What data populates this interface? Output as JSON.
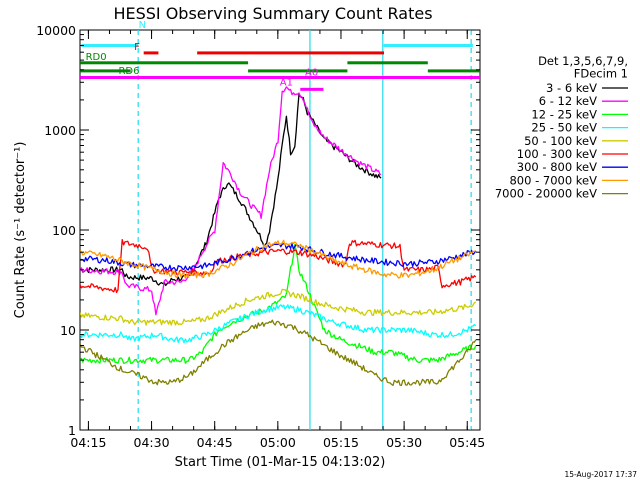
{
  "chart_data": {
    "type": "line",
    "title": "HESSI Observing Summary Count Rates",
    "xlabel": "Start Time (01-Mar-15 04:13:02)",
    "ylabel": "Count Rate (s⁻¹ detector⁻¹)",
    "xlim_minutes_after_04_13_02": [
      -0.03,
      95.0
    ],
    "x_unit": "minutes after 01-Mar-15 04:13:02",
    "ylim": [
      1,
      10000
    ],
    "y_scale": "log",
    "x_ticks": [
      {
        "m": 1.97,
        "label": "04:15"
      },
      {
        "m": 16.97,
        "label": "04:30"
      },
      {
        "m": 31.97,
        "label": "04:45"
      },
      {
        "m": 46.97,
        "label": "05:00"
      },
      {
        "m": 61.97,
        "label": "05:15"
      },
      {
        "m": 76.97,
        "label": "05:30"
      },
      {
        "m": 91.97,
        "label": "05:45"
      }
    ],
    "y_ticks": [
      {
        "v": 1,
        "label": "1"
      },
      {
        "v": 10,
        "label": "10"
      },
      {
        "v": 100,
        "label": "100"
      },
      {
        "v": 1000,
        "label": "1000"
      },
      {
        "v": 10000,
        "label": "10000"
      }
    ],
    "legend": {
      "header": [
        "Det 1,3,5,6,7,9,",
        "FDecim 1"
      ],
      "placement": "right"
    },
    "series": [
      {
        "name": "3 - 6 keV",
        "color": "#000000",
        "points": [
          [
            0,
            40
          ],
          [
            10,
            40
          ],
          [
            11,
            34
          ],
          [
            17,
            33
          ],
          [
            20,
            28
          ],
          [
            22,
            32
          ],
          [
            26,
            34
          ],
          [
            30,
            75
          ],
          [
            33,
            210
          ],
          [
            35,
            300
          ],
          [
            38,
            200
          ],
          [
            41,
            120
          ],
          [
            44,
            70
          ],
          [
            45,
            100
          ],
          [
            47,
            320
          ],
          [
            48,
            700
          ],
          [
            49,
            1400
          ],
          [
            50,
            600
          ],
          [
            51,
            700
          ],
          [
            52,
            2300
          ],
          [
            53,
            2000
          ],
          [
            54,
            1500
          ],
          [
            56,
            1100
          ],
          [
            58,
            800
          ],
          [
            62,
            600
          ],
          [
            66,
            440
          ],
          [
            70,
            350
          ],
          [
            71.5,
            330
          ]
        ]
      },
      {
        "name": "6 - 12 keV",
        "color": "#ff00ff",
        "points": [
          [
            0,
            40
          ],
          [
            10,
            38
          ],
          [
            11,
            28
          ],
          [
            17,
            25
          ],
          [
            18,
            14
          ],
          [
            20,
            30
          ],
          [
            24,
            30
          ],
          [
            27,
            40
          ],
          [
            29,
            60
          ],
          [
            32,
            100
          ],
          [
            34,
            470
          ],
          [
            36,
            350
          ],
          [
            38,
            240
          ],
          [
            41,
            170
          ],
          [
            43,
            140
          ],
          [
            45,
            400
          ],
          [
            47,
            800
          ],
          [
            48,
            2500
          ],
          [
            49,
            2700
          ],
          [
            50,
            2400
          ],
          [
            52,
            2400
          ],
          [
            53,
            2100
          ],
          [
            55,
            1200
          ],
          [
            58,
            850
          ],
          [
            62,
            630
          ],
          [
            66,
            480
          ],
          [
            70,
            390
          ],
          [
            71.5,
            360
          ]
        ]
      },
      {
        "name": "12 - 25 keV",
        "color": "#00ff00",
        "points": [
          [
            0,
            5
          ],
          [
            10,
            5
          ],
          [
            12,
            5
          ],
          [
            20,
            5
          ],
          [
            26,
            5
          ],
          [
            29,
            6
          ],
          [
            31,
            8
          ],
          [
            33,
            10
          ],
          [
            36,
            12
          ],
          [
            40,
            14
          ],
          [
            44,
            16
          ],
          [
            47,
            19
          ],
          [
            49,
            22
          ],
          [
            50,
            40
          ],
          [
            51,
            70
          ],
          [
            52,
            40
          ],
          [
            54,
            26
          ],
          [
            56,
            16
          ],
          [
            58,
            10
          ],
          [
            62,
            8
          ],
          [
            66,
            7
          ],
          [
            70,
            6
          ],
          [
            74,
            6
          ],
          [
            80,
            5
          ],
          [
            85,
            5
          ],
          [
            90,
            6
          ],
          [
            94,
            7
          ]
        ]
      },
      {
        "name": "25 - 50 keV",
        "color": "#00ffff",
        "points": [
          [
            0,
            9
          ],
          [
            10,
            9
          ],
          [
            12,
            8
          ],
          [
            18,
            9
          ],
          [
            22,
            8
          ],
          [
            26,
            8
          ],
          [
            30,
            9
          ],
          [
            36,
            12
          ],
          [
            40,
            14
          ],
          [
            44,
            16
          ],
          [
            48,
            17
          ],
          [
            52,
            16
          ],
          [
            56,
            14
          ],
          [
            60,
            12
          ],
          [
            64,
            11
          ],
          [
            68,
            10
          ],
          [
            72,
            10
          ],
          [
            78,
            10
          ],
          [
            84,
            9
          ],
          [
            88,
            9
          ],
          [
            92,
            10
          ],
          [
            94,
            11
          ]
        ]
      },
      {
        "name": "50 - 100 keV",
        "color": "#cccc00",
        "points": [
          [
            0,
            14
          ],
          [
            10,
            13
          ],
          [
            12,
            12
          ],
          [
            18,
            12
          ],
          [
            22,
            12
          ],
          [
            26,
            12
          ],
          [
            30,
            13
          ],
          [
            36,
            17
          ],
          [
            40,
            20
          ],
          [
            44,
            22
          ],
          [
            48,
            24
          ],
          [
            52,
            22
          ],
          [
            56,
            19
          ],
          [
            60,
            17
          ],
          [
            64,
            16
          ],
          [
            68,
            15
          ],
          [
            72,
            15
          ],
          [
            78,
            15
          ],
          [
            84,
            15
          ],
          [
            88,
            16
          ],
          [
            92,
            17
          ],
          [
            94,
            19
          ]
        ]
      },
      {
        "name": "100 - 300 keV",
        "color": "#ff0000",
        "points": [
          [
            0,
            28
          ],
          [
            6,
            26
          ],
          [
            9,
            25
          ],
          [
            10,
            75
          ],
          [
            14,
            70
          ],
          [
            16,
            67
          ],
          [
            17,
            40
          ],
          [
            22,
            38
          ],
          [
            26,
            38
          ],
          [
            31,
            37
          ],
          [
            32,
            48
          ],
          [
            38,
            55
          ],
          [
            44,
            60
          ],
          [
            48,
            62
          ],
          [
            52,
            60
          ],
          [
            56,
            55
          ],
          [
            60,
            48
          ],
          [
            63,
            45
          ],
          [
            64,
            75
          ],
          [
            70,
            72
          ],
          [
            74,
            70
          ],
          [
            76,
            68
          ],
          [
            77,
            40
          ],
          [
            82,
            40
          ],
          [
            85,
            42
          ],
          [
            86,
            28
          ],
          [
            90,
            30
          ],
          [
            94,
            34
          ]
        ]
      },
      {
        "name": "300 - 800 keV",
        "color": "#0000ff",
        "points": [
          [
            0,
            52
          ],
          [
            6,
            50
          ],
          [
            12,
            45
          ],
          [
            18,
            43
          ],
          [
            24,
            42
          ],
          [
            30,
            44
          ],
          [
            36,
            52
          ],
          [
            40,
            60
          ],
          [
            44,
            67
          ],
          [
            48,
            70
          ],
          [
            52,
            68
          ],
          [
            56,
            62
          ],
          [
            60,
            57
          ],
          [
            64,
            53
          ],
          [
            68,
            50
          ],
          [
            72,
            48
          ],
          [
            78,
            46
          ],
          [
            84,
            48
          ],
          [
            88,
            52
          ],
          [
            92,
            58
          ],
          [
            94,
            62
          ]
        ]
      },
      {
        "name": "800 - 7000 keV",
        "color": "#ff9900",
        "points": [
          [
            0,
            60
          ],
          [
            6,
            55
          ],
          [
            12,
            46
          ],
          [
            18,
            40
          ],
          [
            24,
            35
          ],
          [
            30,
            36
          ],
          [
            36,
            46
          ],
          [
            40,
            58
          ],
          [
            44,
            70
          ],
          [
            48,
            75
          ],
          [
            52,
            70
          ],
          [
            56,
            60
          ],
          [
            60,
            50
          ],
          [
            64,
            44
          ],
          [
            68,
            40
          ],
          [
            72,
            36
          ],
          [
            78,
            35
          ],
          [
            84,
            40
          ],
          [
            88,
            48
          ],
          [
            92,
            56
          ],
          [
            94,
            62
          ]
        ]
      },
      {
        "name": "7000 - 20000 keV",
        "color": "#808000",
        "points": [
          [
            0,
            7
          ],
          [
            6,
            5
          ],
          [
            10,
            4
          ],
          [
            14,
            3.5
          ],
          [
            18,
            3
          ],
          [
            22,
            3
          ],
          [
            26,
            3.5
          ],
          [
            30,
            5
          ],
          [
            34,
            7
          ],
          [
            38,
            9
          ],
          [
            42,
            11
          ],
          [
            46,
            12
          ],
          [
            50,
            11
          ],
          [
            54,
            9
          ],
          [
            58,
            7
          ],
          [
            62,
            5.5
          ],
          [
            66,
            4.5
          ],
          [
            70,
            3.5
          ],
          [
            74,
            3
          ],
          [
            78,
            3
          ],
          [
            82,
            3
          ],
          [
            85,
            3
          ],
          [
            88,
            4
          ],
          [
            92,
            6
          ],
          [
            94,
            8
          ]
        ]
      }
    ],
    "annotations": {
      "cursor_lines": [
        {
          "m": 13.8,
          "color": "#33ddee",
          "style": "dashed"
        },
        {
          "m": 54.6,
          "color": "#33ddee",
          "style": "solid"
        },
        {
          "m": 71.9,
          "color": "#33ddee",
          "style": "solid"
        },
        {
          "m": 92.9,
          "color": "#33ddee",
          "style": "dashed"
        }
      ],
      "flag_bars": [
        {
          "label": "N",
          "color": "#33eeff",
          "segments": [
            [
              0.3,
              13.8
            ],
            [
              72.1,
              93.3
            ]
          ],
          "level": 7000,
          "label_m": 14.8,
          "label_v": 10500
        },
        {
          "label": "F",
          "color": "#ee0000",
          "segments": [
            [
              15.1,
              18.6
            ],
            [
              27.8,
              72.2
            ]
          ],
          "level": 5900,
          "label_m": 13.5,
          "label_v": 6300
        },
        {
          "label": "RD0",
          "color": "#008800",
          "segments": [
            [
              0,
              39.9
            ],
            [
              63.5,
              82.6
            ]
          ],
          "level": 4700,
          "label_m": 3.8,
          "label_v": 5000
        },
        {
          "label": "RD6",
          "color": "#008800",
          "segments": [
            [
              0,
              12.0
            ],
            [
              39.9,
              63.5
            ],
            [
              82.6,
              95.0
            ]
          ],
          "level": 3900,
          "label_m": 11.6,
          "label_v": 3650
        },
        {
          "label": "A1",
          "color": "#ff00ff",
          "segments": [
            [
              0,
              95.0
            ]
          ],
          "level": 3350,
          "label_m": 49.0,
          "label_v": 2800
        },
        {
          "label": "A0",
          "color": "#ff00ff",
          "segments": [
            [
              52.3,
              57.8
            ]
          ],
          "level": 2550,
          "label_m": 55.0,
          "label_v": 3500
        }
      ]
    }
  },
  "footer_timestamp": "15-Aug-2017 17:37"
}
